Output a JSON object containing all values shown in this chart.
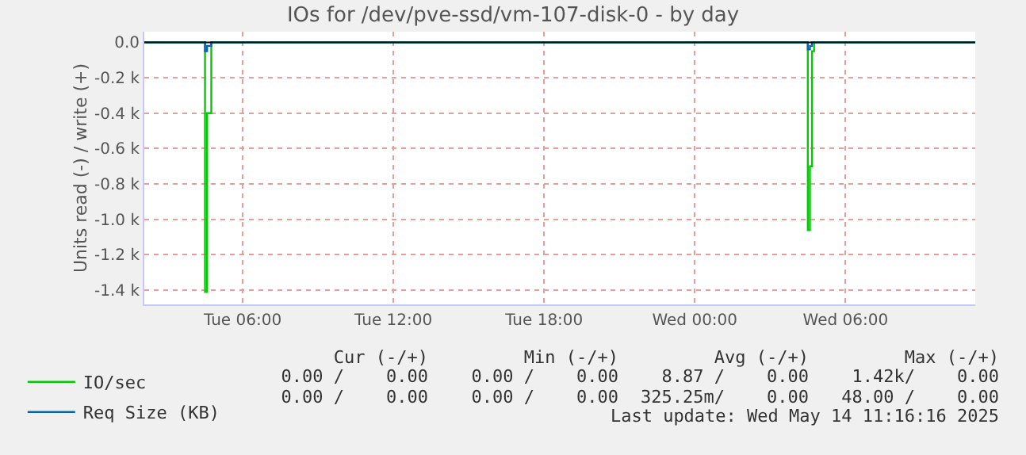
{
  "chart_data": {
    "type": "step",
    "title": "IOs for /dev/pve-ssd/vm-107-disk-0 - by day",
    "ylabel": "Units read (-) / write (+)",
    "xlim": [
      "2025-05-13T02:05",
      "2025-05-14T11:10"
    ],
    "xticks": [
      {
        "value": "2025-05-13T06:00",
        "label": "Tue 06:00"
      },
      {
        "value": "2025-05-13T12:00",
        "label": "Tue 12:00"
      },
      {
        "value": "2025-05-13T18:00",
        "label": "Tue 18:00"
      },
      {
        "value": "2025-05-14T00:00",
        "label": "Wed 00:00"
      },
      {
        "value": "2025-05-14T06:00",
        "label": "Wed 06:00"
      }
    ],
    "ylim": [
      -1480,
      60
    ],
    "yticks": [
      {
        "value": 0,
        "label": "0.0"
      },
      {
        "value": -200,
        "label": "-0.2 k"
      },
      {
        "value": -400,
        "label": "-0.4 k"
      },
      {
        "value": -600,
        "label": "-0.6 k"
      },
      {
        "value": -800,
        "label": "-0.8 k"
      },
      {
        "value": -1000,
        "label": "-1.0 k"
      },
      {
        "value": -1200,
        "label": "-1.2 k"
      },
      {
        "value": -1400,
        "label": "-1.4 k"
      }
    ],
    "series": [
      {
        "name": "IO/sec",
        "color": "#00cc00",
        "x": [
          "2025-05-13T02:05",
          "2025-05-13T04:30",
          "2025-05-13T04:35",
          "2025-05-13T04:45",
          "2025-05-14T04:30",
          "2025-05-14T04:35",
          "2025-05-14T04:40",
          "2025-05-14T04:45",
          "2025-05-14T11:10"
        ],
        "values": [
          0,
          -1410,
          -400,
          0,
          -1060,
          -700,
          -50,
          0,
          0
        ]
      },
      {
        "name": "Req Size (KB)",
        "color": "#0066b3",
        "x": [
          "2025-05-13T02:05",
          "2025-05-13T04:30",
          "2025-05-13T04:35",
          "2025-05-13T04:45",
          "2025-05-14T04:30",
          "2025-05-14T04:35",
          "2025-05-14T04:40",
          "2025-05-14T11:10"
        ],
        "values": [
          0,
          -50,
          -20,
          0,
          -40,
          -20,
          0,
          0
        ]
      }
    ],
    "ref_lines": [
      {
        "axis": "y",
        "value": 0,
        "color": "#000000"
      }
    ],
    "grid": true,
    "legend": "bottom left",
    "line_style": "solid",
    "marker": "none",
    "annotations": [
      "Cur (-/+)",
      "Min (-/+)",
      "Avg (-/+)",
      "Max (-/+)",
      "0.00 /    0.00",
      "0.00 /    0.00",
      "8.87 /    0.00",
      "1.42k/    0.00",
      "0.00 /    0.00",
      "0.00 /    0.00",
      "325.25m/    0.00",
      "48.00 /    0.00",
      "Last update: Wed May 14 11:16:16 2025"
    ]
  }
}
